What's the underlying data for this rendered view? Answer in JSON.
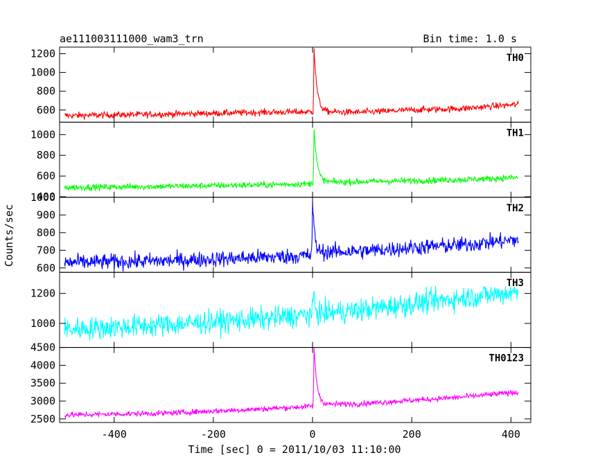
{
  "chart_data": {
    "type": "line",
    "title_left": "ae111003111000_wam3_trn",
    "title_right": "Bin time: 1.0 s",
    "xlabel": "Time [sec] 0 = 2011/10/03 11:10:00",
    "ylabel": "Counts/sec",
    "xlim": [
      -510,
      440
    ],
    "x_ticks": [
      -400,
      -200,
      0,
      200,
      400
    ],
    "x_range": [
      -500,
      415
    ],
    "grid": false,
    "panels": [
      {
        "name": "TH0",
        "color": "#ff0000",
        "ylim": [
          470,
          1270
        ],
        "y_ticks": [
          600,
          800,
          1000,
          1200
        ],
        "baseline": [
          [
            -500,
            540
          ],
          [
            -300,
            555
          ],
          [
            -100,
            575
          ],
          [
            -5,
            580
          ],
          [
            15,
            580
          ],
          [
            100,
            575
          ],
          [
            200,
            600
          ],
          [
            300,
            615
          ],
          [
            415,
            660
          ]
        ],
        "noise": 25,
        "peak": {
          "t": 3,
          "value": 1270,
          "decay": 6
        }
      },
      {
        "name": "TH1",
        "color": "#00ff00",
        "ylim": [
          395,
          1120
        ],
        "y_ticks": [
          400,
          600,
          800,
          1000
        ],
        "baseline": [
          [
            -500,
            490
          ],
          [
            -300,
            500
          ],
          [
            -100,
            515
          ],
          [
            -5,
            525
          ],
          [
            15,
            540
          ],
          [
            100,
            545
          ],
          [
            200,
            555
          ],
          [
            300,
            565
          ],
          [
            415,
            585
          ]
        ],
        "noise": 22,
        "peak": {
          "t": 3,
          "value": 1080,
          "decay": 6
        }
      },
      {
        "name": "TH2",
        "color": "#0000ff",
        "ylim": [
          575,
          1000
        ],
        "y_ticks": [
          600,
          700,
          800,
          900,
          1000
        ],
        "baseline": [
          [
            -500,
            630
          ],
          [
            -300,
            640
          ],
          [
            -100,
            660
          ],
          [
            -5,
            670
          ],
          [
            15,
            690
          ],
          [
            100,
            695
          ],
          [
            200,
            715
          ],
          [
            300,
            730
          ],
          [
            415,
            760
          ]
        ],
        "noise": 32,
        "peak": {
          "t": 0,
          "value": 990,
          "decay": 4
        }
      },
      {
        "name": "TH3",
        "color": "#00ffff",
        "ylim": [
          840,
          1340
        ],
        "y_ticks": [
          1000,
          1200
        ],
        "baseline": [
          [
            -500,
            960
          ],
          [
            -300,
            990
          ],
          [
            -100,
            1030
          ],
          [
            0,
            1060
          ],
          [
            100,
            1090
          ],
          [
            200,
            1130
          ],
          [
            300,
            1170
          ],
          [
            415,
            1210
          ]
        ],
        "noise": 55,
        "peak": {
          "t": 2,
          "value": 1230,
          "decay": 3
        }
      },
      {
        "name": "TH0123",
        "color": "#ff00ff",
        "ylim": [
          2400,
          4500
        ],
        "y_ticks": [
          2500,
          3000,
          3500,
          4000,
          4500
        ],
        "baseline": [
          [
            -500,
            2610
          ],
          [
            -300,
            2660
          ],
          [
            -100,
            2780
          ],
          [
            -5,
            2850
          ],
          [
            15,
            2900
          ],
          [
            100,
            2930
          ],
          [
            200,
            3020
          ],
          [
            300,
            3110
          ],
          [
            415,
            3250
          ]
        ],
        "noise": 55,
        "peak": {
          "t": 3,
          "value": 4500,
          "decay": 6
        }
      }
    ]
  }
}
